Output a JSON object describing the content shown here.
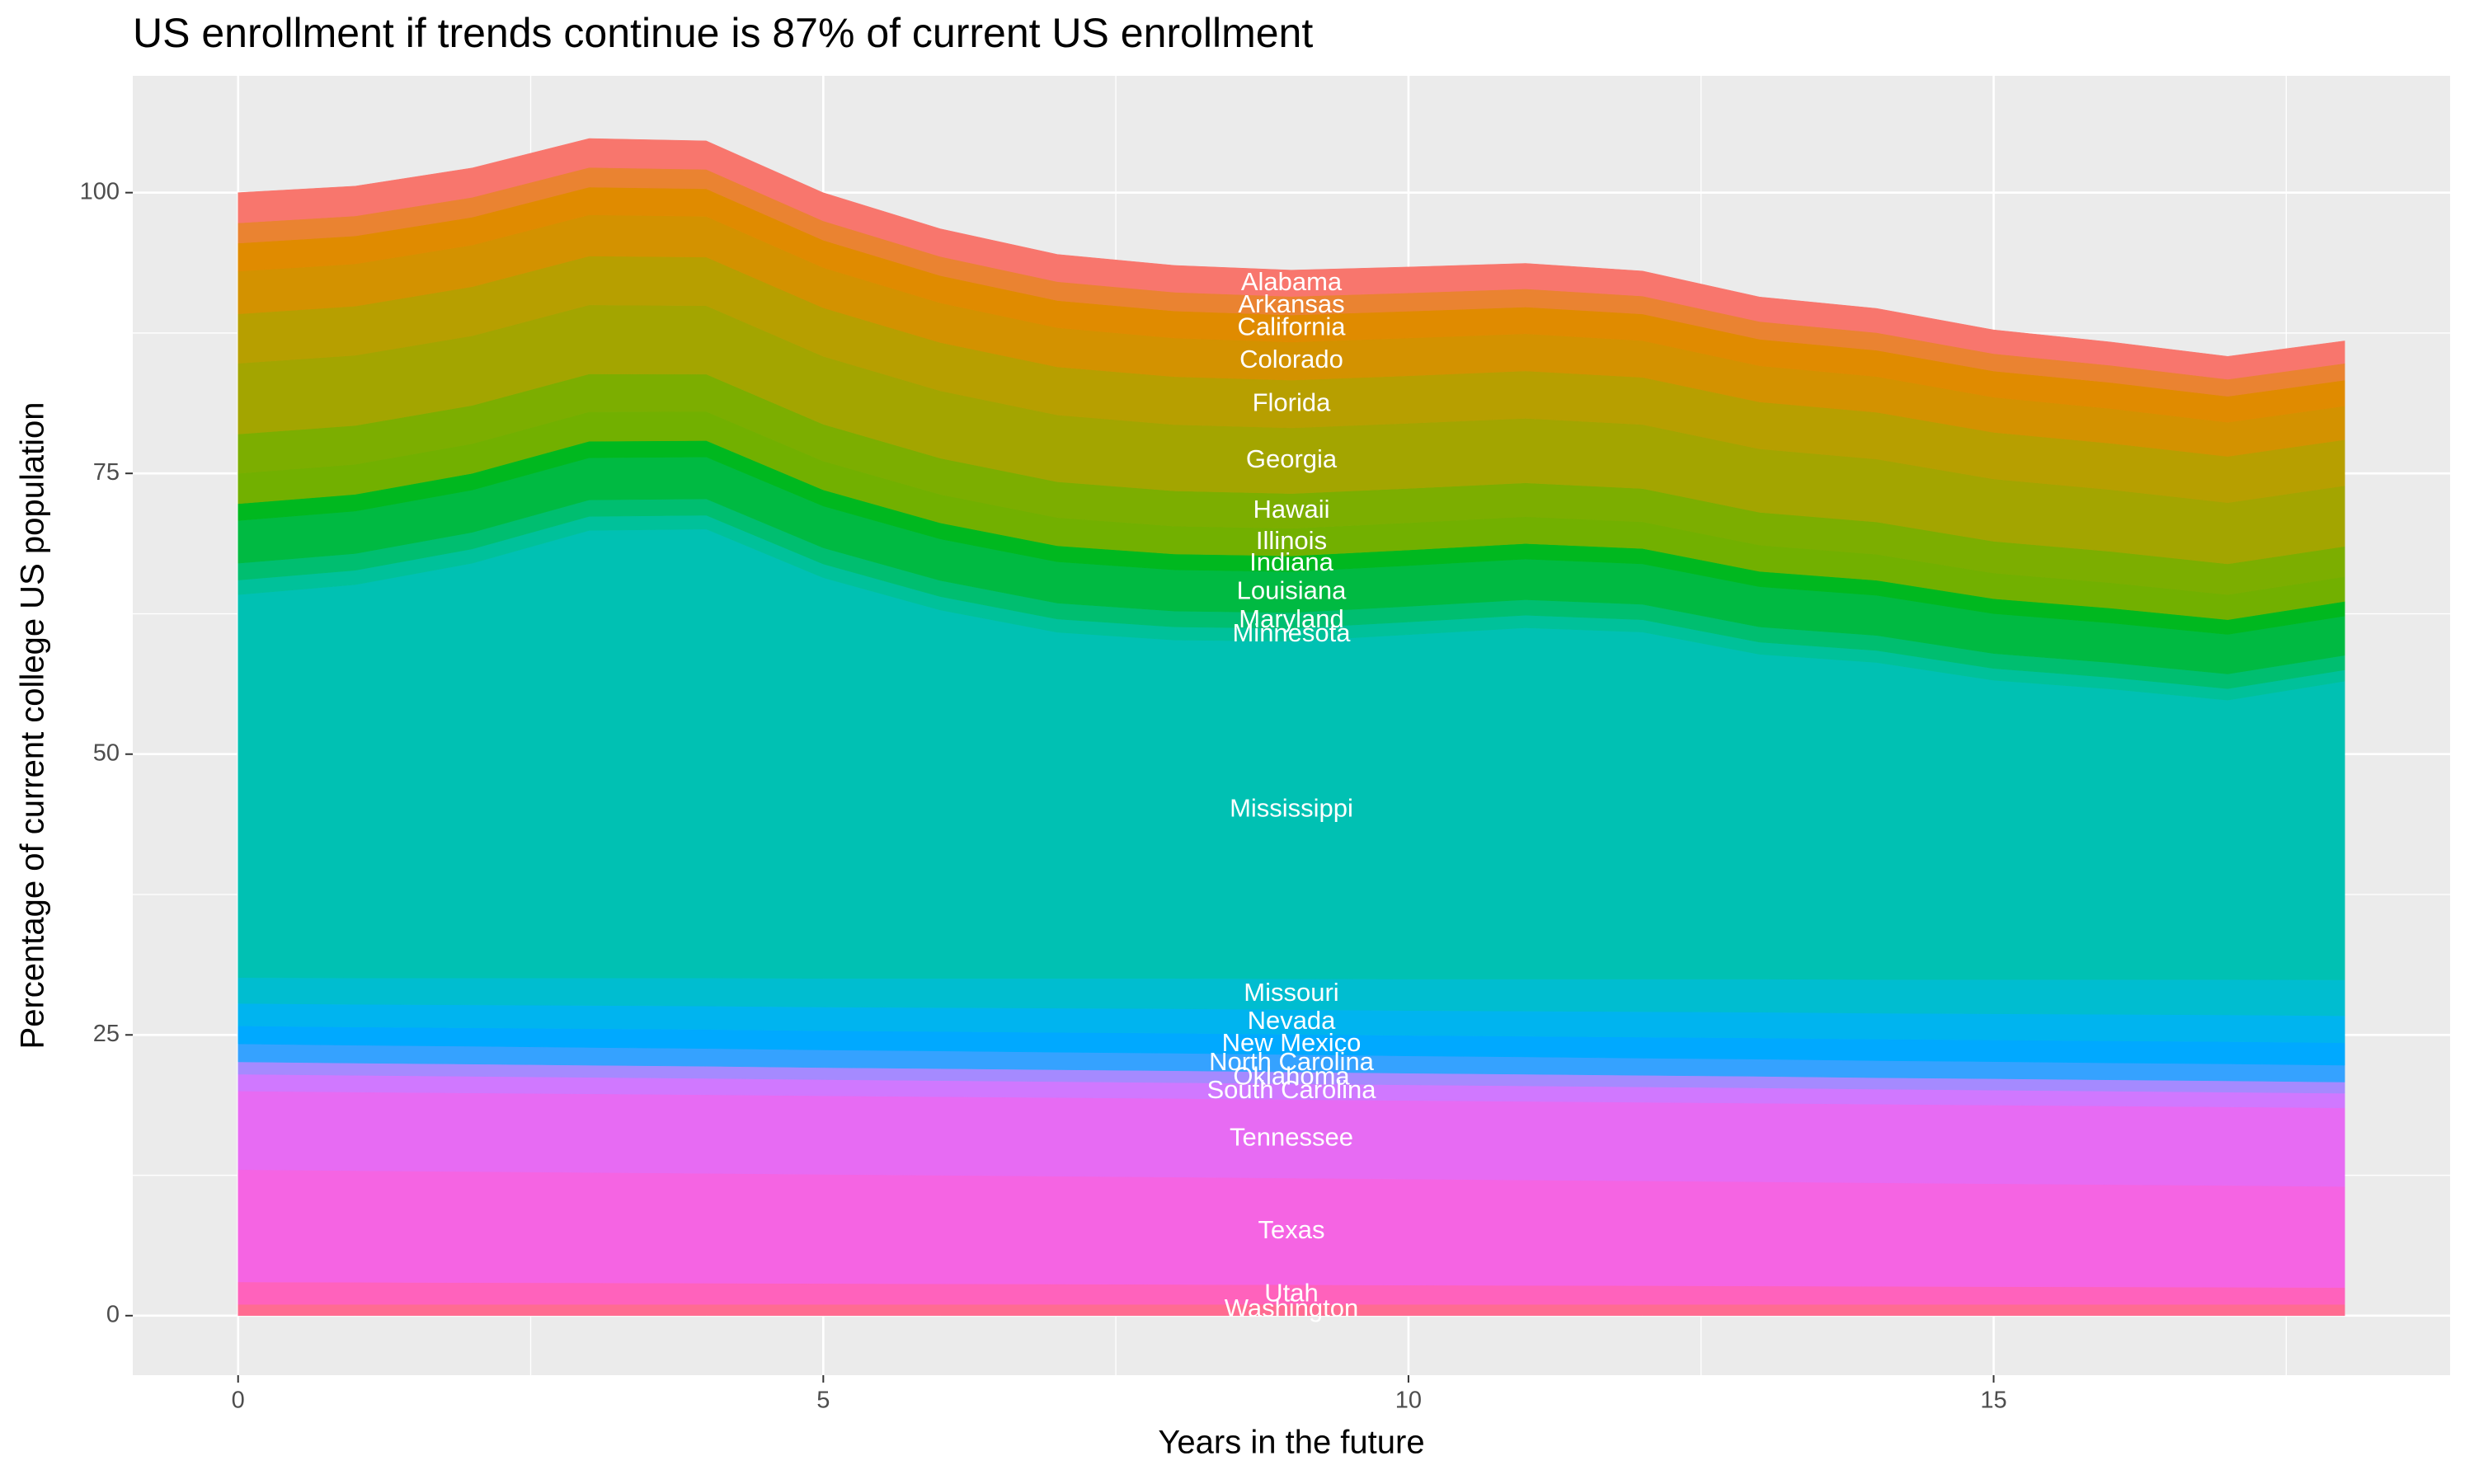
{
  "chart_data": {
    "type": "stacked_area",
    "title": "US enrollment if trends continue is 87% of current US enrollment",
    "x_label": "Years in the future",
    "y_label": "Percentage of current college US population",
    "x": [
      0,
      1,
      2,
      3,
      4,
      5,
      6,
      7,
      8,
      9,
      10,
      11,
      12,
      13,
      14,
      15,
      16,
      17,
      18
    ],
    "xlim": [
      -0.9,
      18.9
    ],
    "xticks": [
      0,
      5,
      10,
      15
    ],
    "ylim": [
      -5.3,
      110.4
    ],
    "yticks": [
      0,
      25,
      50,
      75,
      100
    ],
    "grid": true,
    "label_x": 9,
    "series": [
      {
        "name": "Washington",
        "color": "#FF6C91",
        "values": [
          1,
          1,
          1,
          1,
          1,
          1,
          1,
          1,
          1,
          1,
          1,
          1,
          1,
          1,
          1,
          1,
          1,
          1,
          1
        ]
      },
      {
        "name": "Utah",
        "color": "#FF62BC",
        "values": [
          2,
          1.97,
          1.94,
          1.92,
          1.89,
          1.86,
          1.83,
          1.81,
          1.78,
          1.75,
          1.72,
          1.69,
          1.67,
          1.64,
          1.61,
          1.58,
          1.56,
          1.53,
          1.5
        ]
      },
      {
        "name": "Texas",
        "color": "#F564E3",
        "values": [
          10,
          9.94,
          9.89,
          9.83,
          9.78,
          9.72,
          9.67,
          9.61,
          9.56,
          9.5,
          9.44,
          9.39,
          9.33,
          9.28,
          9.22,
          9.17,
          9.11,
          9.06,
          9
        ]
      },
      {
        "name": "Tennessee",
        "color": "#E76BF3",
        "values": [
          7,
          7,
          7,
          7,
          7,
          7,
          7,
          7,
          7,
          7,
          7,
          7,
          7,
          7,
          7,
          7,
          7,
          7,
          7
        ]
      },
      {
        "name": "South Carolina",
        "color": "#D078FF",
        "values": [
          1.5,
          1.49,
          1.48,
          1.47,
          1.46,
          1.44,
          1.43,
          1.42,
          1.41,
          1.4,
          1.39,
          1.38,
          1.37,
          1.36,
          1.34,
          1.33,
          1.32,
          1.31,
          1.3
        ]
      },
      {
        "name": "Oklahoma",
        "color": "#A58AFF",
        "values": [
          1.1,
          1.09,
          1.09,
          1.08,
          1.08,
          1.07,
          1.07,
          1.06,
          1.06,
          1.05,
          1.04,
          1.04,
          1.03,
          1.03,
          1.02,
          1.02,
          1.01,
          1.01,
          1
        ]
      },
      {
        "name": "North Carolina",
        "color": "#35A2FF",
        "values": [
          1.6,
          1.59,
          1.59,
          1.58,
          1.58,
          1.57,
          1.57,
          1.56,
          1.56,
          1.55,
          1.54,
          1.54,
          1.53,
          1.53,
          1.52,
          1.52,
          1.51,
          1.51,
          1.5
        ]
      },
      {
        "name": "New Mexico",
        "color": "#00A9FF",
        "values": [
          1.6,
          1.62,
          1.64,
          1.67,
          1.69,
          1.71,
          1.73,
          1.76,
          1.78,
          1.8,
          1.82,
          1.84,
          1.87,
          1.89,
          1.91,
          1.93,
          1.96,
          1.98,
          2
        ]
      },
      {
        "name": "Nevada",
        "color": "#00B4EF",
        "values": [
          2,
          2.02,
          2.04,
          2.07,
          2.09,
          2.11,
          2.13,
          2.16,
          2.18,
          2.2,
          2.22,
          2.24,
          2.27,
          2.29,
          2.31,
          2.33,
          2.36,
          2.38,
          2.4
        ]
      },
      {
        "name": "Missouri",
        "color": "#00BDD0",
        "values": [
          2.3,
          2.35,
          2.4,
          2.45,
          2.5,
          2.55,
          2.6,
          2.65,
          2.7,
          2.75,
          2.8,
          2.85,
          2.9,
          2.95,
          3,
          3.05,
          3.1,
          3.15,
          3.2
        ]
      },
      {
        "name": "Mississippi",
        "color": "#00C1B3",
        "values": [
          34.1,
          35.02,
          36.93,
          39.85,
          39.97,
          35.68,
          32.8,
          30.82,
          30.13,
          30.05,
          30.67,
          31.28,
          30.9,
          28.92,
          28.23,
          26.65,
          25.87,
          24.88,
          26.6
        ]
      },
      {
        "name": "Minnesota",
        "color": "#00C19A",
        "values": [
          1.3,
          1.28,
          1.27,
          1.25,
          1.23,
          1.22,
          1.2,
          1.18,
          1.17,
          1.15,
          1.13,
          1.12,
          1.1,
          1.08,
          1.07,
          1.05,
          1.03,
          1.02,
          1
        ]
      },
      {
        "name": "Maryland",
        "color": "#00BE70",
        "values": [
          1.5,
          1.49,
          1.48,
          1.47,
          1.46,
          1.44,
          1.43,
          1.42,
          1.41,
          1.4,
          1.39,
          1.38,
          1.37,
          1.36,
          1.34,
          1.33,
          1.32,
          1.31,
          1.3
        ]
      },
      {
        "name": "Louisiana",
        "color": "#00BA42",
        "values": [
          3.8,
          3.78,
          3.77,
          3.75,
          3.73,
          3.72,
          3.7,
          3.68,
          3.67,
          3.65,
          3.63,
          3.62,
          3.6,
          3.58,
          3.57,
          3.55,
          3.53,
          3.52,
          3.5
        ]
      },
      {
        "name": "Indiana",
        "color": "#00B81F",
        "values": [
          1.5,
          1.49,
          1.48,
          1.47,
          1.46,
          1.44,
          1.43,
          1.42,
          1.41,
          1.4,
          1.39,
          1.38,
          1.37,
          1.36,
          1.34,
          1.33,
          1.32,
          1.31,
          1.3
        ]
      },
      {
        "name": "Illinois",
        "color": "#72B000",
        "values": [
          2.7,
          2.67,
          2.64,
          2.62,
          2.59,
          2.56,
          2.53,
          2.51,
          2.48,
          2.45,
          2.42,
          2.39,
          2.37,
          2.34,
          2.31,
          2.28,
          2.26,
          2.23,
          2.2
        ]
      },
      {
        "name": "Hawaii",
        "color": "#7CAE00",
        "values": [
          3.5,
          3.46,
          3.41,
          3.37,
          3.32,
          3.28,
          3.23,
          3.19,
          3.14,
          3.1,
          3.06,
          3.01,
          2.97,
          2.92,
          2.88,
          2.83,
          2.79,
          2.74,
          2.7
        ]
      },
      {
        "name": "Georgia",
        "color": "#A3A500",
        "values": [
          6.3,
          6.25,
          6.2,
          6.15,
          6.1,
          6.05,
          6,
          5.95,
          5.9,
          5.85,
          5.8,
          5.75,
          5.7,
          5.65,
          5.6,
          5.55,
          5.5,
          5.45,
          5.4
        ]
      },
      {
        "name": "Florida",
        "color": "#B79F00",
        "values": [
          4.4,
          4.38,
          4.37,
          4.35,
          4.33,
          4.32,
          4.3,
          4.28,
          4.27,
          4.25,
          4.23,
          4.22,
          4.2,
          4.18,
          4.17,
          4.15,
          4.13,
          4.12,
          4.1
        ]
      },
      {
        "name": "Colorado",
        "color": "#D39200",
        "values": [
          3.8,
          3.76,
          3.71,
          3.67,
          3.62,
          3.58,
          3.53,
          3.49,
          3.44,
          3.4,
          3.36,
          3.31,
          3.27,
          3.22,
          3.18,
          3.13,
          3.09,
          3.04,
          3
        ]
      },
      {
        "name": "California",
        "color": "#E08B00",
        "values": [
          2.5,
          2.49,
          2.48,
          2.47,
          2.46,
          2.44,
          2.43,
          2.42,
          2.41,
          2.4,
          2.39,
          2.38,
          2.37,
          2.36,
          2.34,
          2.33,
          2.32,
          2.31,
          2.3
        ]
      },
      {
        "name": "Arkansas",
        "color": "#EA8331",
        "values": [
          1.8,
          1.78,
          1.77,
          1.75,
          1.73,
          1.72,
          1.7,
          1.68,
          1.67,
          1.65,
          1.63,
          1.62,
          1.6,
          1.58,
          1.57,
          1.55,
          1.53,
          1.52,
          1.5
        ]
      },
      {
        "name": "Alabama",
        "color": "#F8766D",
        "values": [
          2.7,
          2.66,
          2.62,
          2.58,
          2.54,
          2.51,
          2.47,
          2.43,
          2.39,
          2.35,
          2.31,
          2.27,
          2.23,
          2.19,
          2.16,
          2.12,
          2.08,
          2.04,
          2
        ]
      }
    ]
  }
}
